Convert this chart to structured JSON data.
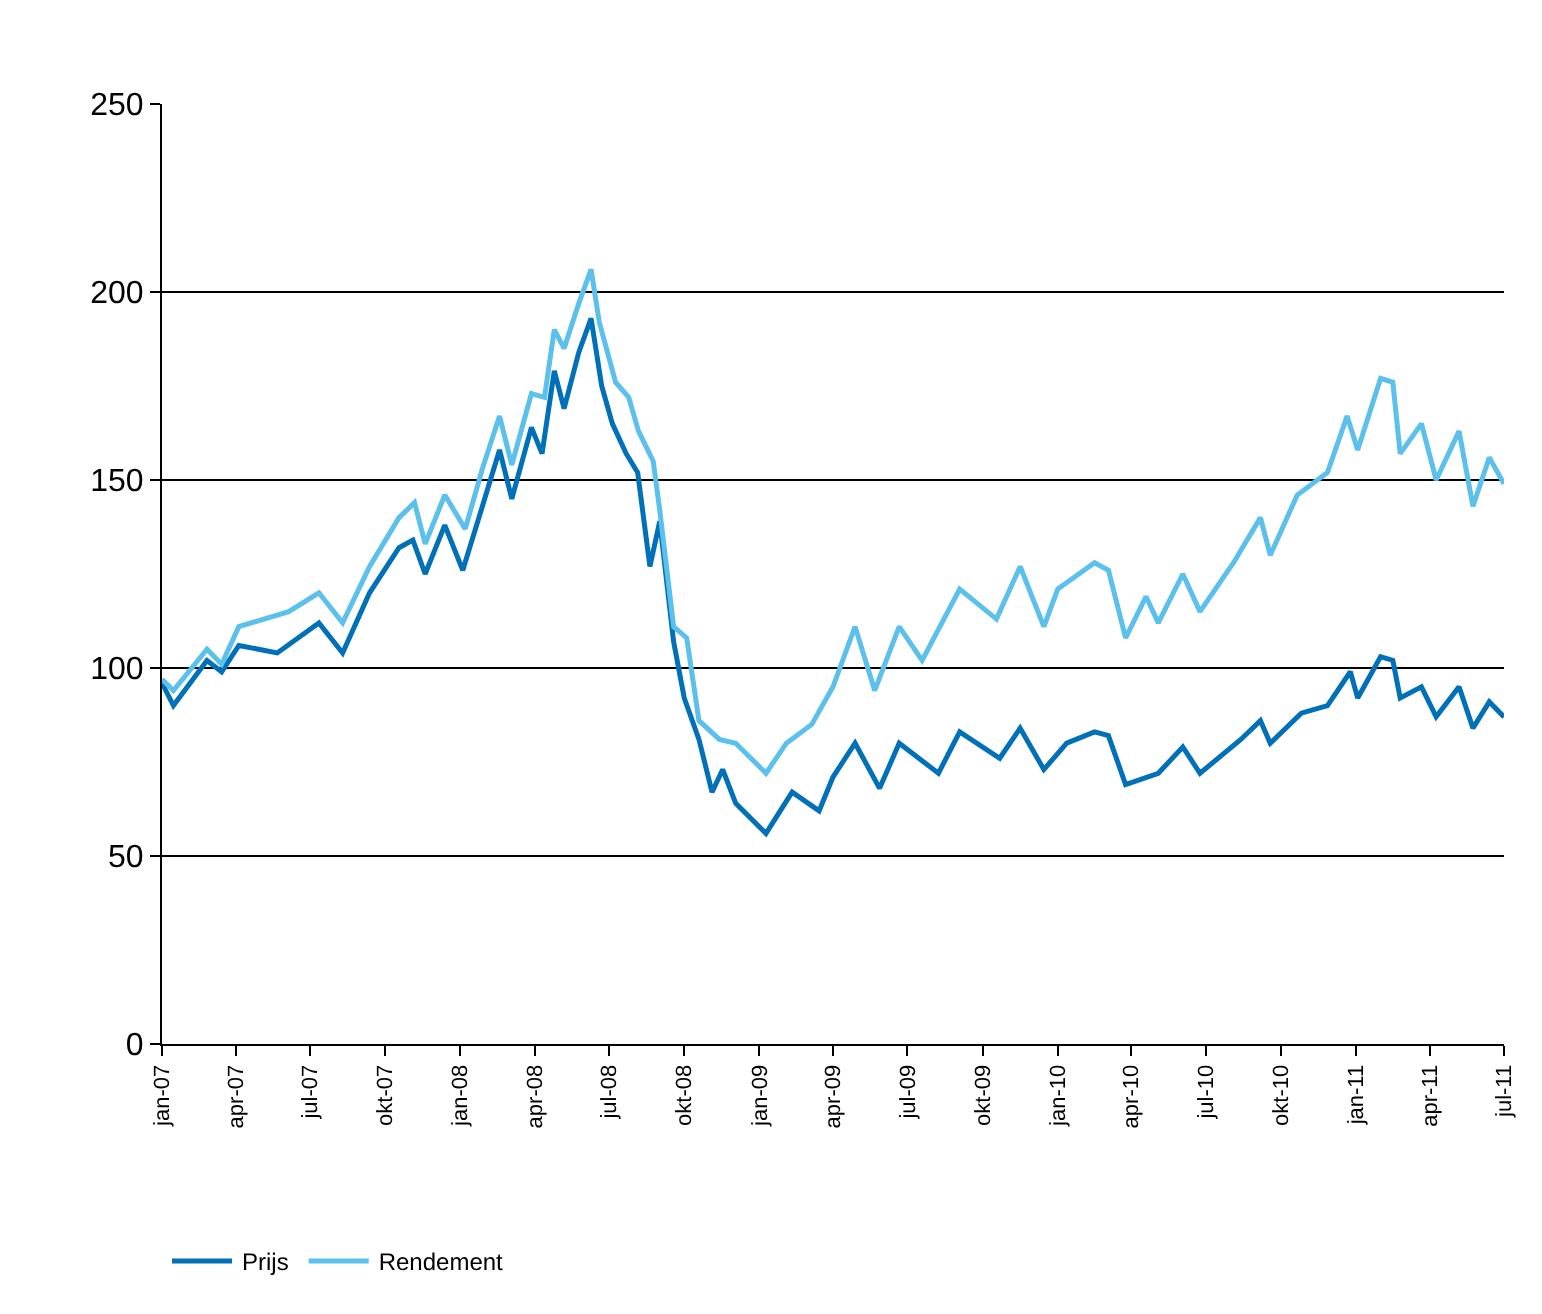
{
  "chart_data": {
    "type": "line",
    "xlim": [
      "2007-01-01",
      "2011-07-01"
    ],
    "xticks": [
      {
        "value": "2007-01-01",
        "label": "jan-07"
      },
      {
        "value": "2007-04-01",
        "label": "apr-07"
      },
      {
        "value": "2007-07-01",
        "label": "jul-07"
      },
      {
        "value": "2007-10-01",
        "label": "okt-07"
      },
      {
        "value": "2008-01-01",
        "label": "jan-08"
      },
      {
        "value": "2008-04-01",
        "label": "apr-08"
      },
      {
        "value": "2008-07-01",
        "label": "jul-08"
      },
      {
        "value": "2008-10-01",
        "label": "okt-08"
      },
      {
        "value": "2009-01-01",
        "label": "jan-09"
      },
      {
        "value": "2009-04-01",
        "label": "apr-09"
      },
      {
        "value": "2009-07-01",
        "label": "jul-09"
      },
      {
        "value": "2009-10-01",
        "label": "okt-09"
      },
      {
        "value": "2010-01-01",
        "label": "jan-10"
      },
      {
        "value": "2010-04-01",
        "label": "apr-10"
      },
      {
        "value": "2010-07-01",
        "label": "jul-10"
      },
      {
        "value": "2010-10-01",
        "label": "okt-10"
      },
      {
        "value": "2011-01-01",
        "label": "jan-11"
      },
      {
        "value": "2011-04-01",
        "label": "apr-11"
      },
      {
        "value": "2011-07-01",
        "label": "jul-11"
      }
    ],
    "ylim": [
      0,
      250
    ],
    "yticks": [
      0,
      50,
      100,
      150,
      200,
      250
    ],
    "grid": "y",
    "legend": "bottom left",
    "marker": "none",
    "line_style": "solid",
    "series": [
      {
        "name": "Prijs",
        "color": "#0070b8",
        "x": [
          "2007-01-01",
          "2007-01-15",
          "2007-02-25",
          "2007-03-15",
          "2007-04-05",
          "2007-05-22",
          "2007-07-12",
          "2007-08-10",
          "2007-09-12",
          "2007-10-18",
          "2007-11-04",
          "2007-11-19",
          "2007-12-13",
          "2008-01-04",
          "2008-01-28",
          "2008-02-18",
          "2008-03-04",
          "2008-03-28",
          "2008-04-10",
          "2008-04-25",
          "2008-05-07",
          "2008-05-25",
          "2008-06-09",
          "2008-06-22",
          "2008-07-05",
          "2008-07-22",
          "2008-08-05",
          "2008-08-20",
          "2008-09-01",
          "2008-09-18",
          "2008-10-01",
          "2008-10-19",
          "2008-11-04",
          "2008-11-17",
          "2008-12-03",
          "2009-01-09",
          "2009-02-10",
          "2009-03-15",
          "2009-04-01",
          "2009-04-28",
          "2009-05-28",
          "2009-06-21",
          "2009-08-08",
          "2009-09-03",
          "2009-10-22",
          "2009-11-16",
          "2009-12-15",
          "2010-01-12",
          "2010-02-15",
          "2010-03-04",
          "2010-03-25",
          "2010-05-04",
          "2010-06-03",
          "2010-06-24",
          "2010-08-13",
          "2010-09-06",
          "2010-09-18",
          "2010-10-26",
          "2010-11-27",
          "2010-12-25",
          "2011-01-03",
          "2011-01-31",
          "2011-02-15",
          "2011-02-24",
          "2011-03-22",
          "2011-04-09",
          "2011-05-07",
          "2011-05-24",
          "2011-06-13",
          "2011-07-01"
        ],
        "values": [
          96,
          90,
          102,
          99,
          106,
          104,
          112,
          104,
          120,
          132,
          134,
          125,
          138,
          126,
          143,
          158,
          145,
          164,
          157,
          179,
          169,
          184,
          193,
          175,
          165,
          157,
          152,
          127,
          139,
          107,
          92,
          81,
          67,
          73,
          64,
          56,
          67,
          62,
          71,
          80,
          68,
          80,
          72,
          83,
          76,
          84,
          73,
          80,
          83,
          82,
          69,
          72,
          79,
          72,
          81,
          86,
          80,
          88,
          90,
          99,
          92,
          103,
          102,
          92,
          95,
          87,
          95,
          84,
          91,
          87
        ]
      },
      {
        "name": "Rendement",
        "color": "#5bc0eb",
        "x": [
          "2007-01-01",
          "2007-01-15",
          "2007-02-25",
          "2007-03-15",
          "2007-04-05",
          "2007-06-05",
          "2007-07-12",
          "2007-08-10",
          "2007-09-12",
          "2007-10-18",
          "2007-11-06",
          "2007-11-19",
          "2007-12-13",
          "2008-01-07",
          "2008-01-28",
          "2008-02-18",
          "2008-03-04",
          "2008-03-28",
          "2008-04-13",
          "2008-04-25",
          "2008-05-07",
          "2008-05-25",
          "2008-06-09",
          "2008-06-19",
          "2008-07-09",
          "2008-07-25",
          "2008-08-06",
          "2008-08-24",
          "2008-09-01",
          "2008-09-18",
          "2008-10-04",
          "2008-10-19",
          "2008-11-13",
          "2008-12-03",
          "2009-01-09",
          "2009-02-03",
          "2009-03-06",
          "2009-04-01",
          "2009-04-28",
          "2009-05-22",
          "2009-06-21",
          "2009-07-19",
          "2009-09-03",
          "2009-10-18",
          "2009-11-16",
          "2009-12-15",
          "2010-01-01",
          "2010-02-15",
          "2010-03-04",
          "2010-03-25",
          "2010-04-19",
          "2010-05-04",
          "2010-06-03",
          "2010-06-24",
          "2010-08-04",
          "2010-09-06",
          "2010-09-18",
          "2010-10-21",
          "2010-11-27",
          "2010-12-21",
          "2011-01-03",
          "2011-01-31",
          "2011-02-15",
          "2011-02-24",
          "2011-03-22",
          "2011-04-09",
          "2011-05-07",
          "2011-05-24",
          "2011-06-13",
          "2011-07-01"
        ],
        "values": [
          97,
          94,
          105,
          101,
          111,
          115,
          120,
          112,
          127,
          140,
          144,
          133,
          146,
          137,
          153,
          167,
          154,
          173,
          172,
          190,
          185,
          197,
          206,
          192,
          176,
          172,
          163,
          155,
          142,
          111,
          108,
          86,
          81,
          80,
          72,
          80,
          85,
          95,
          111,
          94,
          111,
          102,
          121,
          113,
          127,
          111,
          121,
          128,
          126,
          108,
          119,
          112,
          125,
          115,
          128,
          140,
          130,
          146,
          152,
          167,
          158,
          177,
          176,
          157,
          165,
          150,
          163,
          143,
          156,
          149
        ]
      }
    ]
  }
}
